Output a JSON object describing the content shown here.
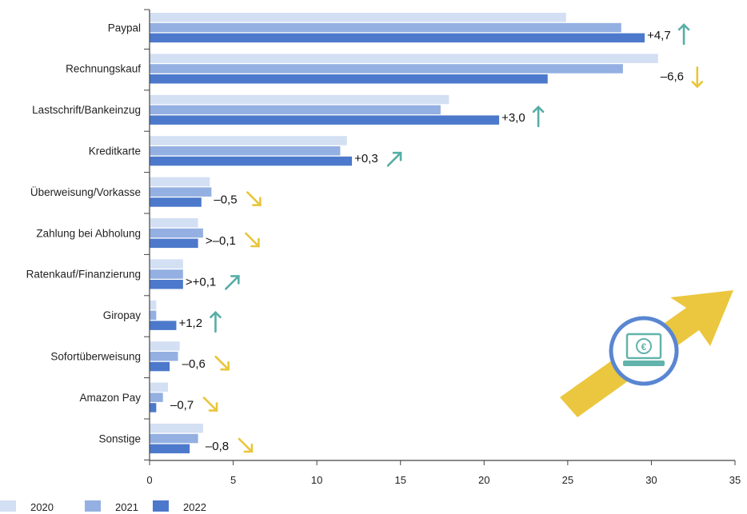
{
  "colors": {
    "2020": "#d3dff3",
    "2021": "#94b0e2",
    "2022": "#4c79cb",
    "up": "#57aea6",
    "down": "#e9c53a",
    "axis": "#444444",
    "big_arrow": "#ebc73f",
    "icon_ring": "#5a86d1",
    "icon_fill": "#62b3ab"
  },
  "chart_data": {
    "type": "bar",
    "orientation": "horizontal",
    "categories": [
      "Paypal",
      "Rechnungskauf",
      "Lastschrift/Bankeinzug",
      "Kreditkarte",
      "Überweisung/Vorkasse",
      "Zahlung bei Abholung",
      "Ratenkauf/Finanzierung",
      "Giropay",
      "Sofortüberweisung",
      "Amazon Pay",
      "Sonstige"
    ],
    "series": [
      {
        "name": "2020",
        "values": [
          24.9,
          30.4,
          17.9,
          11.8,
          3.6,
          2.9,
          2.0,
          0.4,
          1.8,
          1.1,
          3.2
        ]
      },
      {
        "name": "2021",
        "values": [
          28.2,
          28.3,
          17.4,
          11.4,
          3.7,
          3.2,
          2.0,
          0.4,
          1.7,
          0.8,
          2.9
        ]
      },
      {
        "name": "2022",
        "values": [
          29.6,
          23.8,
          20.9,
          12.1,
          3.1,
          2.9,
          2.0,
          1.6,
          1.2,
          0.4,
          2.4
        ]
      }
    ],
    "changes": [
      {
        "text": "+4,7",
        "dir": "up"
      },
      {
        "text": "–6,6",
        "dir": "down"
      },
      {
        "text": "+3,0",
        "dir": "up"
      },
      {
        "text": "+0,3",
        "dir": "up-right"
      },
      {
        "text": "–0,5",
        "dir": "down-right"
      },
      {
        "text": ">–0,1",
        "dir": "down-right"
      },
      {
        "text": ">+0,1",
        "dir": "up-right"
      },
      {
        "text": "+1,2",
        "dir": "up"
      },
      {
        "text": "–0,6",
        "dir": "down-right"
      },
      {
        "text": "–0,7",
        "dir": "down-right"
      },
      {
        "text": "–0,8",
        "dir": "down-right"
      }
    ],
    "xlim": [
      0,
      35
    ],
    "xticks": [
      0,
      5,
      10,
      15,
      20,
      25,
      30,
      35
    ],
    "legend": [
      "2020",
      "2021",
      "2022"
    ],
    "legend_position": "bottom-left",
    "grid": false
  },
  "decoration": {
    "big_arrow_icon": "rising-arrow-icon",
    "badge_icon": "laptop-euro-icon",
    "euro_symbol": "€"
  }
}
